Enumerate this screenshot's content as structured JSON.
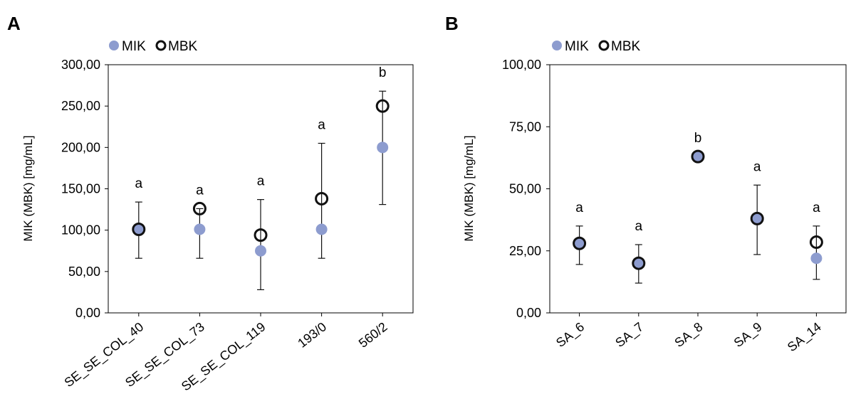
{
  "chart_data": [
    {
      "panel": "A",
      "type": "scatter",
      "categories": [
        "SE_SE_COL_40",
        "SE_SE_COL_73",
        "SE_SE_COL_119",
        "193/0",
        "560/2"
      ],
      "ylabel": "MIK (MBK) [mg/mL]",
      "ylim": [
        0,
        300
      ],
      "yticks": [
        "0,00",
        "50,00",
        "100,00",
        "150,00",
        "200,00",
        "250,00",
        "300,00"
      ],
      "legend": [
        "MIK",
        "MBK"
      ],
      "legend_position": "top-left",
      "grid": false,
      "series": [
        {
          "name": "MIK",
          "values": [
            101,
            101,
            75,
            101,
            200
          ]
        },
        {
          "name": "MBK",
          "values": [
            101,
            126,
            94,
            138,
            250
          ]
        }
      ],
      "error_bars": [
        {
          "center": 101,
          "low": 66,
          "high": 134
        },
        {
          "center": 101,
          "low": 66,
          "high": 126
        },
        {
          "center": 75,
          "low": 28,
          "high": 137
        },
        {
          "center": 101,
          "low": 66,
          "high": 205
        },
        {
          "center": 200,
          "low": 131,
          "high": 268
        }
      ],
      "significance": [
        "a",
        "a",
        "a",
        "a",
        "b"
      ]
    },
    {
      "panel": "B",
      "type": "scatter",
      "categories": [
        "SA_6",
        "SA_7",
        "SA_8",
        "SA_9",
        "SA_14"
      ],
      "ylabel": "MIK (MBK) [mg/mL]",
      "ylim": [
        0,
        100
      ],
      "yticks": [
        "0,00",
        "25,00",
        "50,00",
        "75,00",
        "100,00"
      ],
      "legend": [
        "MIK",
        "MBK"
      ],
      "legend_position": "top-left",
      "grid": false,
      "series": [
        {
          "name": "MIK",
          "values": [
            28,
            20,
            63,
            38,
            22
          ]
        },
        {
          "name": "MBK",
          "values": [
            28,
            20,
            63,
            38,
            28.5
          ]
        }
      ],
      "error_bars": [
        {
          "center": 28,
          "low": 19.5,
          "high": 35
        },
        {
          "center": 20,
          "low": 12,
          "high": 27.5
        },
        {
          "center": 63,
          "low": 63,
          "high": 63
        },
        {
          "center": 38,
          "low": 23.5,
          "high": 51.5
        },
        {
          "center": 28.5,
          "low": 13.5,
          "high": 35
        }
      ],
      "significance": [
        "a",
        "a",
        "b",
        "a",
        "a"
      ]
    }
  ],
  "colors": {
    "mik_fill": "#8d9ccf",
    "mbk_stroke": "#111111",
    "axis": "#000000"
  }
}
